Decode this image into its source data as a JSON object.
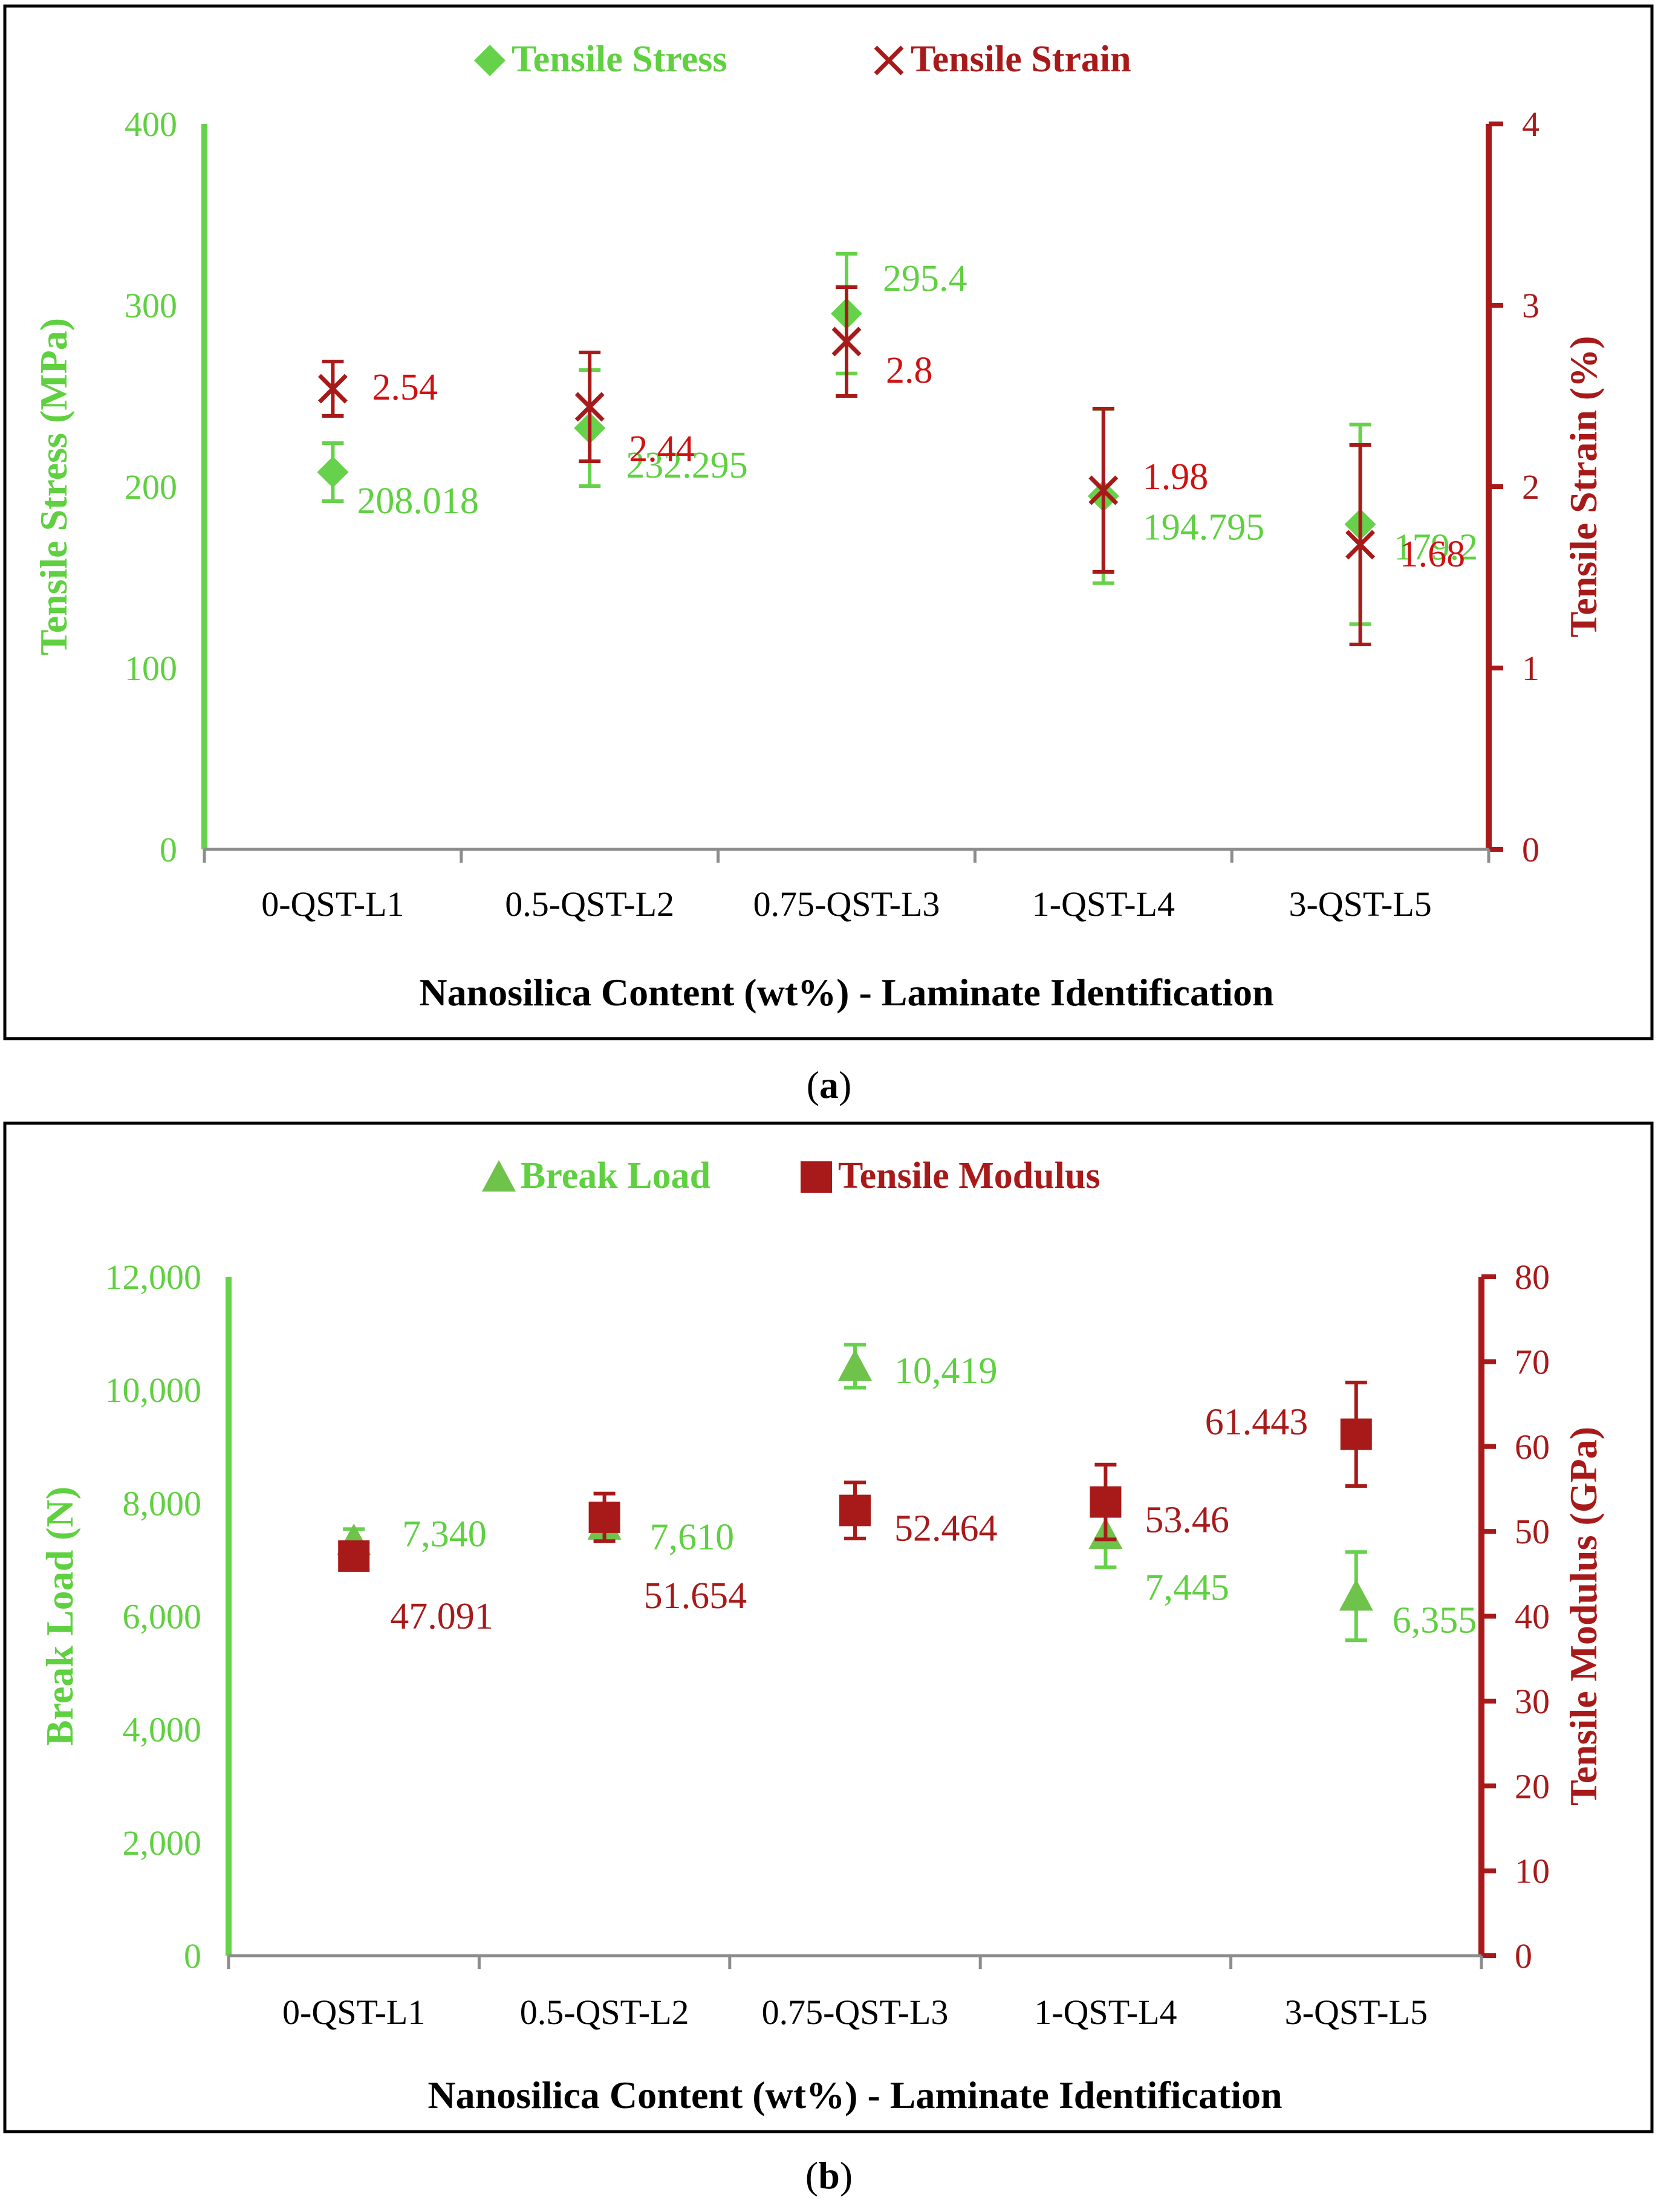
{
  "colors": {
    "green": "#66d14a",
    "green_marker": "#6fc24a",
    "green_text": "#5fd040",
    "red": "#a81a1a",
    "red_text": "#d01010",
    "frame": "#000000"
  },
  "captions": {
    "a": "a",
    "b": "b"
  },
  "chart_data": [
    {
      "id": "a",
      "type": "scatter",
      "title": "",
      "xlabel": "Nanosilica Content (wt%) - Laminate Identification",
      "categories": [
        "0-QST-L1",
        "0.5-QST-L2",
        "0.75-QST-L3",
        "1-QST-L4",
        "3-QST-L5"
      ],
      "left_axis": {
        "label": "Tensile Stress (MPa)",
        "ylim": [
          0,
          400
        ],
        "ticks": [
          "0",
          "100",
          "200",
          "300",
          "400"
        ],
        "tick_values": [
          0,
          100,
          200,
          300,
          400
        ]
      },
      "right_axis": {
        "label": "Tensile  Strain (%)",
        "ylim": [
          0,
          4
        ],
        "ticks": [
          "0",
          "1",
          "2",
          "3",
          "4"
        ],
        "tick_values": [
          0,
          1,
          2,
          3,
          4
        ]
      },
      "legend": {
        "position": "top-center"
      },
      "series": [
        {
          "name": "Tensile Stress",
          "axis": "left",
          "marker": "diamond",
          "color": "green",
          "values": [
            208.018,
            232.295,
            295.4,
            194.795,
            179.2
          ],
          "errors": [
            16,
            32,
            33,
            48,
            55
          ],
          "labels": [
            "208.018",
            "232.295",
            "295.4",
            "194.795",
            "179.2"
          ]
        },
        {
          "name": "Tensile Strain",
          "axis": "right",
          "marker": "x",
          "color": "red",
          "values": [
            2.54,
            2.44,
            2.8,
            1.98,
            1.68
          ],
          "errors": [
            0.15,
            0.3,
            0.3,
            0.45,
            0.55
          ],
          "labels": [
            "2.54",
            "2.44",
            "2.8",
            "1.98",
            "1.68"
          ]
        }
      ]
    },
    {
      "id": "b",
      "type": "scatter",
      "title": "",
      "xlabel": "Nanosilica Content (wt%) - Laminate Identification",
      "categories": [
        "0-QST-L1",
        "0.5-QST-L2",
        "0.75-QST-L3",
        "1-QST-L4",
        "3-QST-L5"
      ],
      "left_axis": {
        "label": "Break Load (N)",
        "ylim": [
          0,
          12000
        ],
        "ticks": [
          "0",
          "2,000",
          "4,000",
          "6,000",
          "8,000",
          "10,000",
          "12,000"
        ],
        "tick_values": [
          0,
          2000,
          4000,
          6000,
          8000,
          10000,
          12000
        ]
      },
      "right_axis": {
        "label": "Tensile Modulus (GPa)",
        "ylim": [
          0,
          80
        ],
        "ticks": [
          "0",
          "10",
          "20",
          "30",
          "40",
          "50",
          "60",
          "70",
          "80"
        ],
        "tick_values": [
          0,
          10,
          20,
          30,
          40,
          50,
          60,
          70,
          80
        ]
      },
      "legend": {
        "position": "top-center"
      },
      "series": [
        {
          "name": "Break Load",
          "axis": "left",
          "marker": "triangle",
          "color": "green_marker",
          "values": [
            7340,
            7610,
            10419,
            7445,
            6355
          ],
          "errors": [
            200,
            280,
            380,
            580,
            780
          ],
          "labels": [
            "7,340",
            "7,610",
            "10,419",
            "7,445",
            "6,355"
          ]
        },
        {
          "name": "Tensile Modulus",
          "axis": "right",
          "marker": "square",
          "color": "red",
          "values": [
            47.091,
            51.654,
            52.464,
            53.46,
            61.443
          ],
          "errors": [
            1.2,
            2.8,
            3.3,
            4.4,
            6.1
          ],
          "labels": [
            "47.091",
            "51.654",
            "52.464",
            "53.46",
            "61.443"
          ]
        }
      ]
    }
  ]
}
